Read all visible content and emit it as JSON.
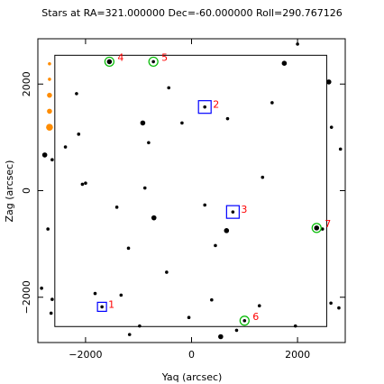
{
  "chart_data": {
    "type": "scatter",
    "title": "Stars at RA=321.000000 Dec=-60.000000 Roll=290.767126",
    "xlabel": "Yaq (arcsec)",
    "ylabel": "Zag (arcsec)",
    "xlim": [
      -2900,
      2900
    ],
    "ylim": [
      -2850,
      2850
    ],
    "xticks": [
      -2000,
      0,
      2000
    ],
    "yticks": [
      -2000,
      0,
      2000
    ],
    "xtick_labels": [
      "−2000",
      "0",
      "2000"
    ],
    "ytick_labels": [
      "−2000",
      "0",
      "2000"
    ],
    "grid": false,
    "fov_box": {
      "x": [
        -2580,
        2550
      ],
      "y": [
        -2550,
        2540
      ]
    },
    "colors": {
      "stars": "#000000",
      "edge_stars": "#ff8c00",
      "guide": "#00bb00",
      "acq": "#0000ff",
      "label": "#ff0000"
    },
    "stars": [
      {
        "x": -1550,
        "y": 2420,
        "mag": 2
      },
      {
        "x": -720,
        "y": 2420,
        "mag": 1
      },
      {
        "x": 1750,
        "y": 2390,
        "mag": 2
      },
      {
        "x": 2590,
        "y": 2040,
        "mag": 2
      },
      {
        "x": -2170,
        "y": 1820,
        "mag": 1
      },
      {
        "x": -430,
        "y": 1930,
        "mag": 1
      },
      {
        "x": 1520,
        "y": 1650,
        "mag": 1
      },
      {
        "x": 250,
        "y": 1570,
        "mag": 1
      },
      {
        "x": 680,
        "y": 1350,
        "mag": 1
      },
      {
        "x": -920,
        "y": 1270,
        "mag": 2
      },
      {
        "x": -180,
        "y": 1270,
        "mag": 1
      },
      {
        "x": -2130,
        "y": 1060,
        "mag": 1
      },
      {
        "x": -810,
        "y": 900,
        "mag": 1
      },
      {
        "x": 2640,
        "y": 1190,
        "mag": 1
      },
      {
        "x": -2380,
        "y": 820,
        "mag": 1
      },
      {
        "x": 2810,
        "y": 780,
        "mag": 1
      },
      {
        "x": -2770,
        "y": 670,
        "mag": 2
      },
      {
        "x": -2060,
        "y": 120,
        "mag": 1
      },
      {
        "x": -2000,
        "y": 140,
        "mag": 1
      },
      {
        "x": -880,
        "y": 50,
        "mag": 1
      },
      {
        "x": 1340,
        "y": 250,
        "mag": 1
      },
      {
        "x": -1410,
        "y": -310,
        "mag": 1
      },
      {
        "x": 250,
        "y": -270,
        "mag": 1
      },
      {
        "x": 780,
        "y": -400,
        "mag": 1
      },
      {
        "x": -710,
        "y": -510,
        "mag": 2
      },
      {
        "x": 660,
        "y": -750,
        "mag": 2
      },
      {
        "x": 2360,
        "y": -700,
        "mag": 2
      },
      {
        "x": 2470,
        "y": -720,
        "mag": 1
      },
      {
        "x": 450,
        "y": -1030,
        "mag": 1
      },
      {
        "x": -1190,
        "y": -1080,
        "mag": 1
      },
      {
        "x": -2710,
        "y": -720,
        "mag": 1
      },
      {
        "x": -470,
        "y": -1530,
        "mag": 1
      },
      {
        "x": -1820,
        "y": -1930,
        "mag": 1
      },
      {
        "x": -1330,
        "y": -1960,
        "mag": 1
      },
      {
        "x": -1690,
        "y": -2180,
        "mag": 1
      },
      {
        "x": -2630,
        "y": -2040,
        "mag": 1
      },
      {
        "x": -2830,
        "y": -1830,
        "mag": 1
      },
      {
        "x": 380,
        "y": -2050,
        "mag": 1
      },
      {
        "x": 1280,
        "y": -2160,
        "mag": 1
      },
      {
        "x": 2630,
        "y": -2110,
        "mag": 1
      },
      {
        "x": 2780,
        "y": -2200,
        "mag": 1
      },
      {
        "x": -50,
        "y": -2380,
        "mag": 1
      },
      {
        "x": -980,
        "y": -2540,
        "mag": 1
      },
      {
        "x": 1000,
        "y": -2440,
        "mag": 1
      },
      {
        "x": 850,
        "y": -2620,
        "mag": 1
      },
      {
        "x": -1170,
        "y": -2700,
        "mag": 1
      },
      {
        "x": 550,
        "y": -2740,
        "mag": 2
      },
      {
        "x": 1960,
        "y": -2540,
        "mag": 1
      },
      {
        "x": 2000,
        "y": 2750,
        "mag": 1
      },
      {
        "x": -2630,
        "y": 580,
        "mag": 1
      },
      {
        "x": -2650,
        "y": -2300,
        "mag": 1
      }
    ],
    "edge_stars": [
      {
        "x": -2680,
        "y": 2380,
        "mag": 1
      },
      {
        "x": -2680,
        "y": 2090,
        "mag": 1
      },
      {
        "x": -2680,
        "y": 1790,
        "mag": 2
      },
      {
        "x": -2680,
        "y": 1490,
        "mag": 2
      },
      {
        "x": -2680,
        "y": 1190,
        "mag": 3
      }
    ],
    "guide_stars": [
      {
        "x": -1550,
        "y": 2420,
        "label": "4"
      },
      {
        "x": -720,
        "y": 2420,
        "label": "5"
      },
      {
        "x": 2360,
        "y": -700,
        "label": "7"
      },
      {
        "x": 1000,
        "y": -2440,
        "label": "6"
      }
    ],
    "acq_stars": [
      {
        "x": 250,
        "y": 1570,
        "label": "2"
      },
      {
        "x": 780,
        "y": -400,
        "label": "3"
      },
      {
        "x": -1690,
        "y": -2180,
        "label": "1"
      }
    ]
  }
}
